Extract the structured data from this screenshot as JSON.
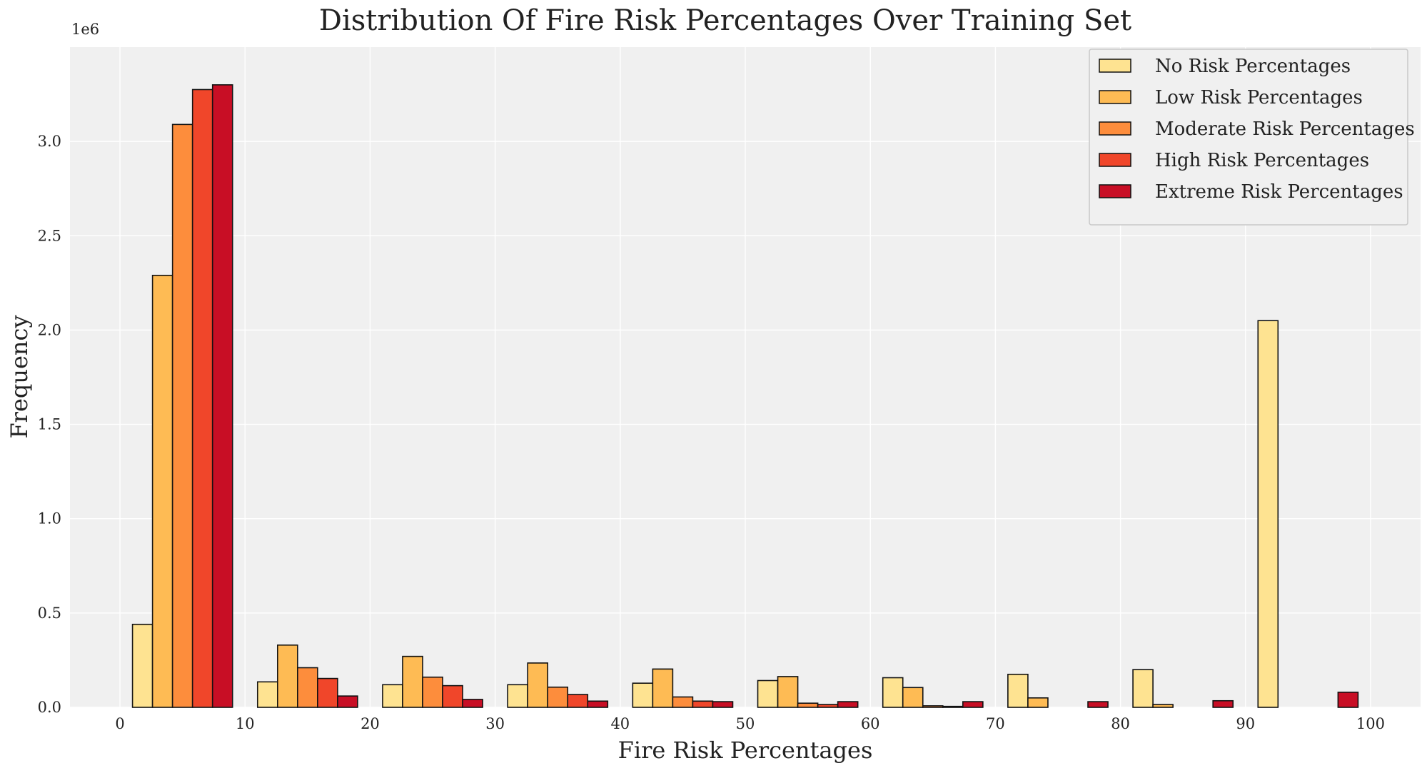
{
  "chart_data": {
    "type": "bar",
    "title": "Distribution Of Fire Risk Percentages Over Training Set",
    "xlabel": "Fire Risk Percentages",
    "ylabel": "Frequency",
    "y_offset_label": "1e6",
    "xlim": [
      -4,
      104
    ],
    "ylim": [
      0,
      3.5
    ],
    "xticks": [
      0,
      10,
      20,
      30,
      40,
      50,
      60,
      70,
      80,
      90,
      100
    ],
    "yticks": [
      0.0,
      0.5,
      1.0,
      1.5,
      2.0,
      2.5,
      3.0
    ],
    "ytick_labels": [
      "0.0",
      "0.5",
      "1.0",
      "1.5",
      "2.0",
      "2.5",
      "3.0"
    ],
    "grid": true,
    "legend_position": "top-right",
    "bin_edges": [
      1,
      11,
      21,
      31,
      41,
      51,
      61,
      71,
      81,
      91
    ],
    "bar_width": 1.6,
    "units": "millions",
    "series": [
      {
        "name": "No Risk Percentages",
        "color": "#fee391",
        "values": [
          0.44,
          0.135,
          0.12,
          0.12,
          0.128,
          0.142,
          0.157,
          0.175,
          0.2,
          2.05
        ]
      },
      {
        "name": "Low Risk Percentages",
        "color": "#febb54",
        "values": [
          2.29,
          0.33,
          0.27,
          0.235,
          0.203,
          0.163,
          0.105,
          0.05,
          0.015,
          0.0
        ]
      },
      {
        "name": "Moderate Risk Percentages",
        "color": "#fd8d3c",
        "values": [
          3.09,
          0.21,
          0.16,
          0.107,
          0.055,
          0.022,
          0.008,
          0.0,
          0.0,
          0.0
        ]
      },
      {
        "name": "High Risk Percentages",
        "color": "#f0462a",
        "values": [
          3.275,
          0.153,
          0.115,
          0.068,
          0.033,
          0.015,
          0.005,
          0.0,
          0.0,
          0.0
        ]
      },
      {
        "name": "Extreme Risk Percentages",
        "color": "#c80e25",
        "values": [
          3.3,
          0.06,
          0.042,
          0.033,
          0.03,
          0.03,
          0.03,
          0.03,
          0.035,
          0.08
        ]
      }
    ]
  }
}
